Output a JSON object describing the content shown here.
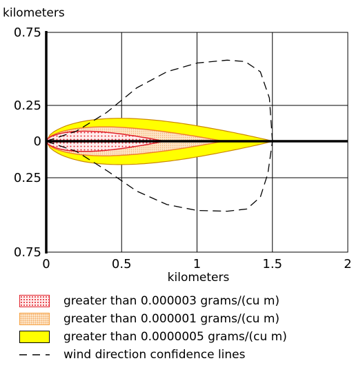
{
  "chart_data": {
    "type": "area",
    "ylabel": "kilometers",
    "xlabel": "kilometers",
    "xlim": [
      0,
      2
    ],
    "ylim_label_order": [
      "0.75",
      "0.25",
      "0",
      "0.25",
      "0.75"
    ],
    "x_ticks": [
      "0",
      "0.5",
      "1",
      "1.5",
      "2"
    ],
    "y_ticks": [
      {
        "value": 0.75,
        "label": "0.75"
      },
      {
        "value": 0.25,
        "label": "0.25"
      },
      {
        "value": 0,
        "label": "0"
      },
      {
        "value": -0.25,
        "label": "0.25"
      },
      {
        "value": -0.75,
        "label": "0.75"
      }
    ],
    "grid": true,
    "series": [
      {
        "name": "greater than 0.0000005 grams/(cu m)",
        "fill": "#ffff00",
        "stroke": "#cc8800",
        "max_downwind_km": 1.5,
        "max_halfwidth_km": 0.16
      },
      {
        "name": "greater than 0.000001 grams/(cu m)",
        "fill": "#fde7c9",
        "stroke": "#f08030",
        "max_downwind_km": 1.17,
        "max_halfwidth_km": 0.1
      },
      {
        "name": "greater than 0.000003 grams/(cu m)",
        "fill": "#ffe8e8",
        "stroke": "#e0202a",
        "max_downwind_km": 0.78,
        "max_halfwidth_km": 0.07
      }
    ],
    "confidence_lines": {
      "name": "wind direction confidence lines",
      "upper": [
        [
          0,
          0
        ],
        [
          0.2,
          0.07
        ],
        [
          0.4,
          0.2
        ],
        [
          0.6,
          0.37
        ],
        [
          0.8,
          0.48
        ],
        [
          1.0,
          0.54
        ],
        [
          1.2,
          0.56
        ],
        [
          1.32,
          0.55
        ],
        [
          1.42,
          0.48
        ],
        [
          1.48,
          0.3
        ],
        [
          1.5,
          0
        ]
      ],
      "lower": [
        [
          0,
          0
        ],
        [
          0.2,
          -0.07
        ],
        [
          0.4,
          -0.2
        ],
        [
          0.6,
          -0.34
        ],
        [
          0.8,
          -0.43
        ],
        [
          1.0,
          -0.47
        ],
        [
          1.2,
          -0.475
        ],
        [
          1.33,
          -0.46
        ],
        [
          1.42,
          -0.38
        ],
        [
          1.47,
          -0.22
        ],
        [
          1.5,
          0
        ]
      ]
    }
  },
  "legend": {
    "items": [
      {
        "label": "greater than 0.000003 grams/(cu m)"
      },
      {
        "label": "greater than 0.000001 grams/(cu m)"
      },
      {
        "label": "greater than 0.0000005 grams/(cu m)"
      },
      {
        "label": "wind direction confidence lines"
      }
    ]
  },
  "colors": {
    "yellow": "#ffff00",
    "orange_fill": "#fde7c9",
    "orange_stroke": "#f08030",
    "red_fill": "#ffe8e8",
    "red_stroke": "#e0202a",
    "axis": "#000000"
  }
}
